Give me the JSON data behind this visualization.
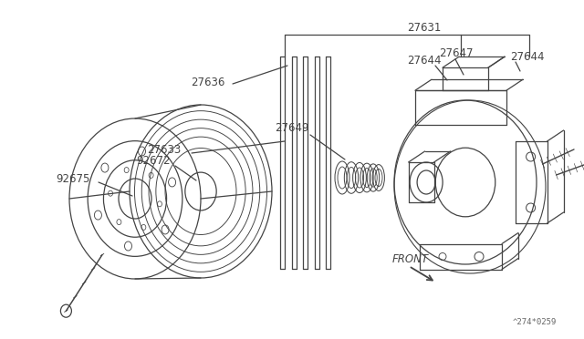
{
  "bg_color": "#ffffff",
  "line_color": "#444444",
  "label_color": "#444444",
  "fig_width": 6.4,
  "fig_height": 3.72,
  "dpi": 100,
  "footer_text": "^274*0259",
  "front_label": "FRONT"
}
